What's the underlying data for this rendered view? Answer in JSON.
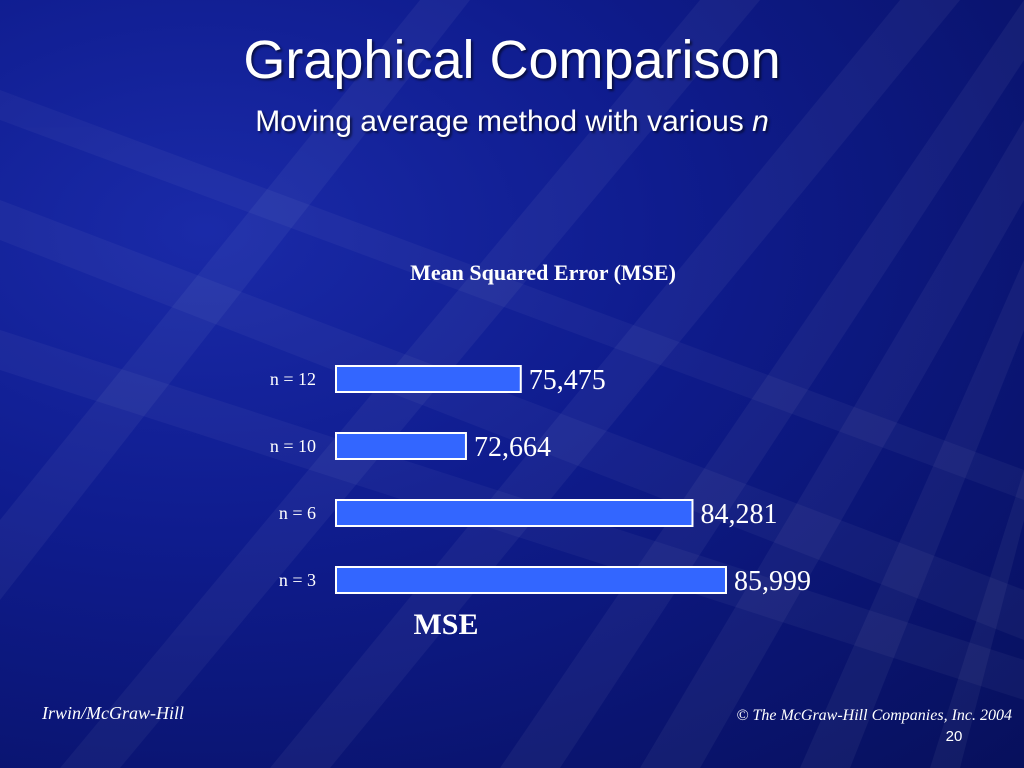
{
  "slide": {
    "title": "Graphical Comparison",
    "subtitle_text": "Moving average method with various ",
    "subtitle_variable": "n"
  },
  "chart_data": {
    "type": "bar",
    "orientation": "horizontal",
    "title": "Mean Squared Error (MSE)",
    "xlabel": "MSE",
    "categories": [
      "n = 12",
      "n = 10",
      "n = 6",
      "n = 3"
    ],
    "values": [
      75475,
      72664,
      84281,
      85999
    ],
    "value_labels": [
      "75,475",
      "72,664",
      "84,281",
      "85,999"
    ],
    "axis_min": 66000,
    "axis_max": 86000,
    "bar_color": "#3366ff",
    "bar_outline": "#ffffff"
  },
  "footer": {
    "publisher": "Irwin/McGraw-Hill",
    "copyright": "© The McGraw-Hill Companies, Inc. 2004",
    "page_number": "20"
  },
  "colors": {
    "background": "#0f1c8e",
    "text": "#ffffff"
  }
}
